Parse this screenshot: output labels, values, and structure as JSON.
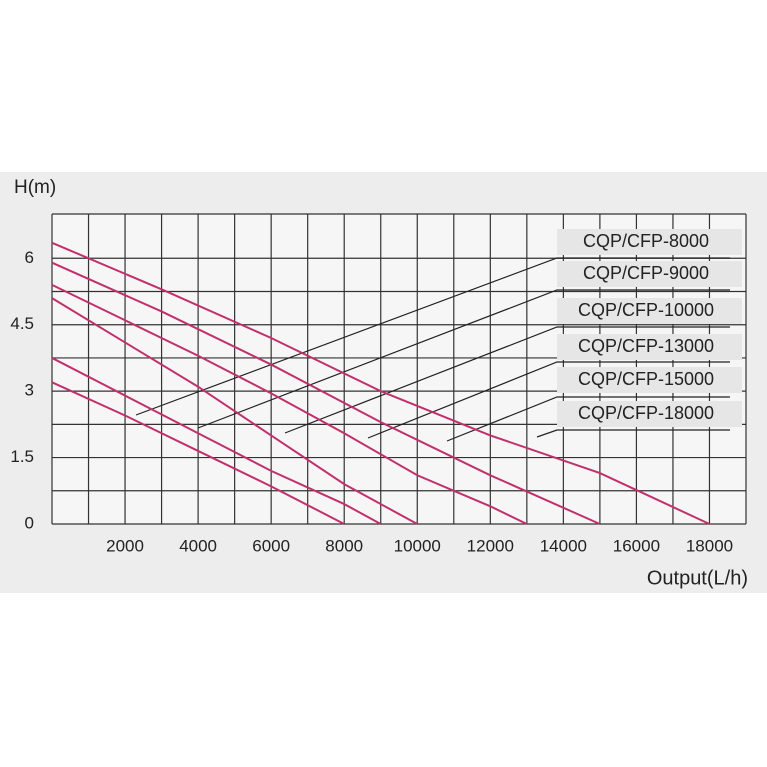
{
  "chart_data": {
    "type": "line",
    "y_label": "H(m)",
    "x_label": "Output(L/h)",
    "xlim": [
      0,
      19000
    ],
    "xticks": [
      2000,
      4000,
      6000,
      8000,
      10000,
      12000,
      14000,
      16000,
      18000
    ],
    "ylim": [
      0,
      7
    ],
    "yticks": [
      0,
      1.5,
      3,
      4.5,
      6
    ],
    "grid": true,
    "series": [
      {
        "name": "CQP/CFP-8000",
        "color": "#c2306c",
        "x": [
          0,
          2000,
          4000,
          6000,
          8000
        ],
        "values": [
          3.2,
          2.45,
          1.65,
          0.85,
          0
        ]
      },
      {
        "name": "CQP/CFP-9000",
        "color": "#c2306c",
        "x": [
          0,
          2000,
          4000,
          6000,
          8000,
          9000
        ],
        "values": [
          3.75,
          2.9,
          2.05,
          1.2,
          0.45,
          0
        ]
      },
      {
        "name": "CQP/CFP-10000",
        "color": "#c2306c",
        "x": [
          0,
          2000,
          4000,
          6000,
          8000,
          10000
        ],
        "values": [
          5.1,
          4.1,
          3.1,
          2.0,
          0.9,
          0
        ]
      },
      {
        "name": "CQP/CFP-13000",
        "color": "#c2306c",
        "x": [
          0,
          2000,
          4000,
          6000,
          8000,
          10000,
          12000,
          13000
        ],
        "values": [
          5.4,
          4.6,
          3.8,
          2.95,
          2.05,
          1.1,
          0.4,
          0
        ]
      },
      {
        "name": "CQP/CFP-15000",
        "color": "#c2306c",
        "x": [
          0,
          3000,
          6000,
          9000,
          12000,
          15000
        ],
        "values": [
          5.9,
          4.8,
          3.6,
          2.3,
          1.1,
          0
        ]
      },
      {
        "name": "CQP/CFP-18000",
        "color": "#c2306c",
        "x": [
          0,
          3000,
          6000,
          9000,
          12000,
          15000,
          18000
        ],
        "values": [
          6.35,
          5.3,
          4.2,
          3.0,
          2.0,
          1.15,
          0
        ]
      }
    ]
  }
}
